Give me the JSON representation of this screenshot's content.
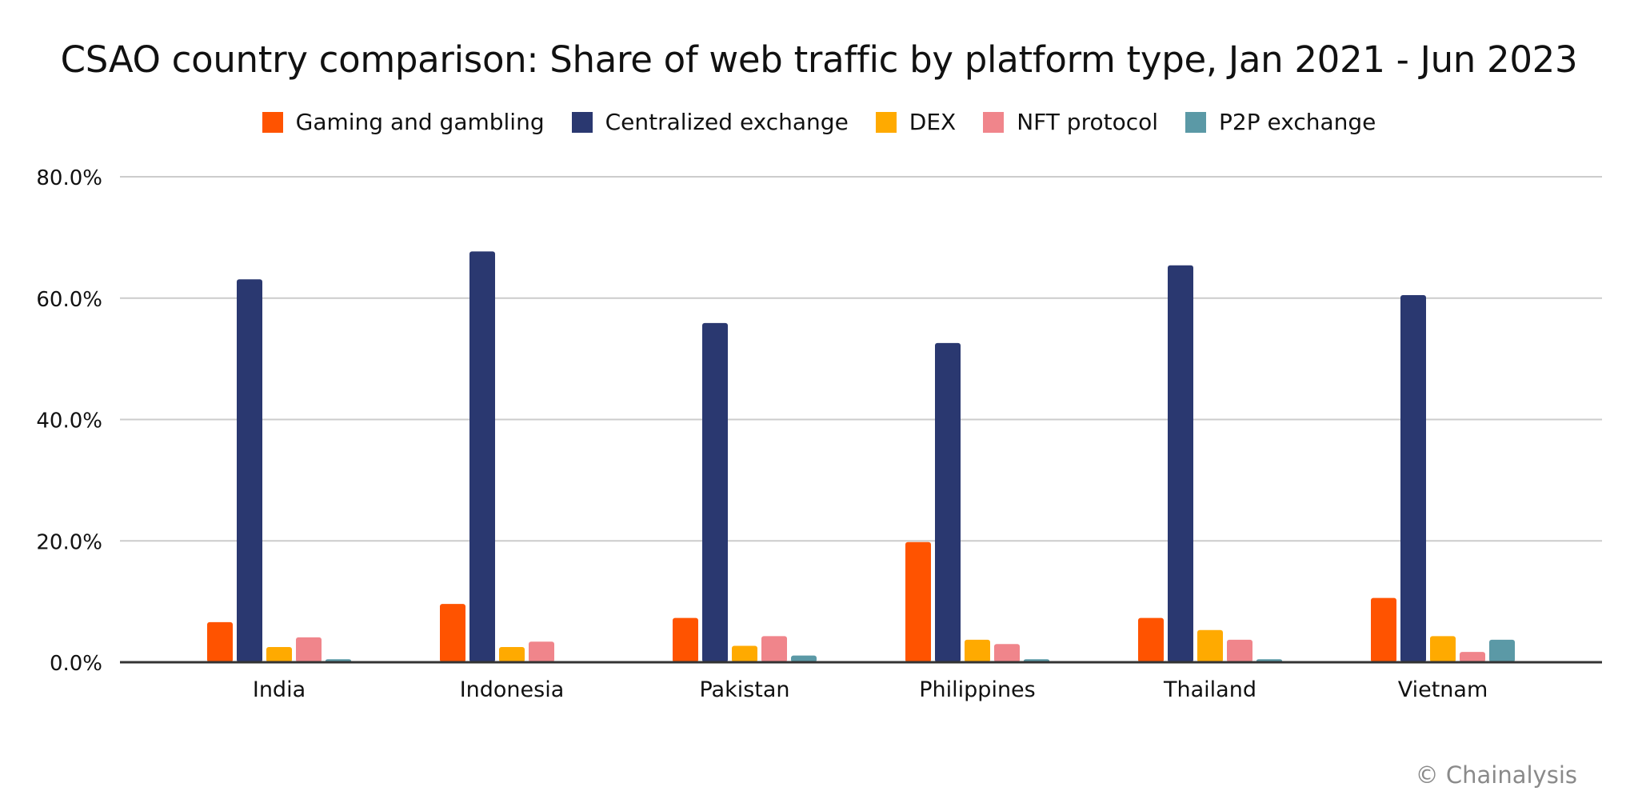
{
  "chart_data": {
    "type": "bar",
    "title": "CSAO country comparison: Share of web traffic by platform type, Jan 2021 - Jun 2023",
    "xlabel": "",
    "ylabel": "",
    "ylim": [
      0,
      80
    ],
    "yticks": [
      0,
      20,
      40,
      60,
      80
    ],
    "ytick_labels": [
      "0.0%",
      "20.0%",
      "40.0%",
      "60.0%",
      "80.0%"
    ],
    "grid": true,
    "legend_position": "top-center",
    "categories": [
      "India",
      "Indonesia",
      "Pakistan",
      "Philippines",
      "Thailand",
      "Vietnam"
    ],
    "series": [
      {
        "name": "Gaming and gambling",
        "color": "#FF5300",
        "values": [
          6.6,
          9.6,
          7.3,
          19.8,
          7.3,
          10.6
        ]
      },
      {
        "name": "Centralized exchange",
        "color": "#2A3870",
        "values": [
          63.1,
          67.7,
          55.9,
          52.6,
          65.4,
          60.5
        ]
      },
      {
        "name": "DEX",
        "color": "#FFAA00",
        "values": [
          2.5,
          2.5,
          2.7,
          3.7,
          5.3,
          4.3
        ]
      },
      {
        "name": "NFT protocol",
        "color": "#F0858B",
        "values": [
          4.1,
          3.4,
          4.3,
          3.0,
          3.7,
          1.7
        ]
      },
      {
        "name": "P2P exchange",
        "color": "#5B99A6",
        "values": [
          0.5,
          0.0,
          1.1,
          0.5,
          0.5,
          3.7
        ]
      }
    ]
  },
  "credit": "© Chainalysis"
}
